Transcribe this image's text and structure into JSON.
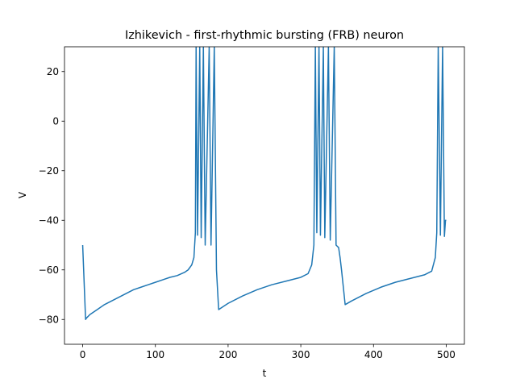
{
  "chart_data": {
    "type": "line",
    "title": "Izhikevich - first-rhythmic bursting (FRB) neuron",
    "xlabel": "t",
    "ylabel": "V",
    "xlim": [
      -25,
      525
    ],
    "ylim": [
      -90,
      30
    ],
    "xticks": [
      0,
      100,
      200,
      300,
      400,
      500
    ],
    "yticks": [
      {
        "value": -80,
        "label": "−80"
      },
      {
        "value": -60,
        "label": "−60"
      },
      {
        "value": -40,
        "label": "−40"
      },
      {
        "value": -20,
        "label": "−20"
      },
      0,
      20
    ],
    "grid": false,
    "series": [
      {
        "color": "#1f77b4",
        "x": [
          0,
          4,
          5,
          10,
          20,
          30,
          40,
          50,
          60,
          70,
          80,
          90,
          100,
          110,
          120,
          130,
          140,
          145,
          150,
          153,
          155,
          156,
          158,
          161,
          163,
          166,
          168.5,
          174,
          176.5,
          181,
          184,
          187,
          200,
          220,
          240,
          260,
          280,
          300,
          310,
          315,
          318,
          320,
          322,
          325,
          327,
          331,
          333,
          338,
          340.5,
          346,
          348.5,
          352,
          354,
          356,
          361,
          370,
          390,
          410,
          430,
          450,
          470,
          480,
          485,
          487,
          489,
          492,
          495,
          497.5,
          499,
          500
        ],
        "values": [
          -50,
          -80,
          -79.5,
          -78,
          -76,
          -74,
          -72.5,
          -71,
          -69.5,
          -68,
          -67,
          -66,
          -65,
          -64,
          -63,
          -62.3,
          -61,
          -60,
          -58,
          -55,
          -45,
          30,
          -46,
          30,
          -47,
          30,
          -50,
          30,
          -50,
          30,
          -60,
          -76,
          -73.5,
          -70.5,
          -68,
          -66,
          -64.5,
          -63,
          -61.5,
          -58,
          -50,
          30,
          -45,
          30,
          -46,
          30,
          -47,
          30,
          -48,
          30,
          -50,
          -51,
          -55,
          -60,
          -74,
          -72.5,
          -69.5,
          -67,
          -65,
          -63.5,
          -62,
          -60.5,
          -55,
          -45,
          30,
          -46,
          30,
          -46.5,
          -40,
          -40
        ]
      }
    ]
  }
}
